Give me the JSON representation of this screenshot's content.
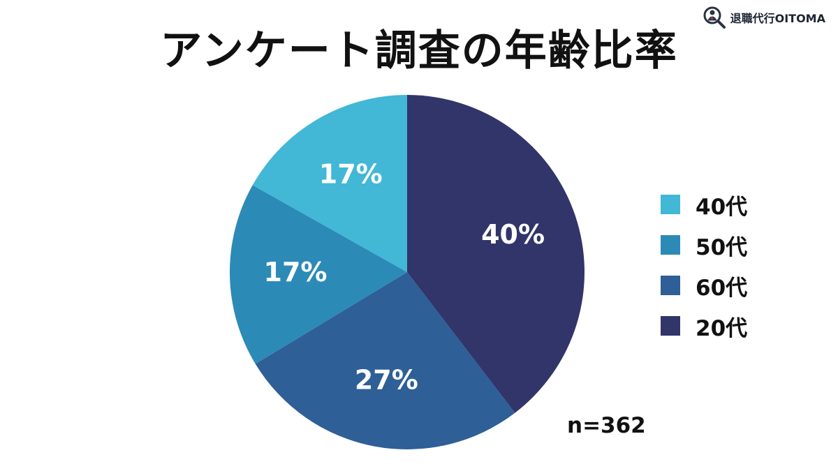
{
  "title": "アンケート調査の年齢比率",
  "brand": {
    "name": "退職代行OITOMA",
    "logo_icon": "consultant-magnifier-icon"
  },
  "sample_size": "n=362",
  "legend": [
    {
      "label": "40代",
      "color": "#42b7d6"
    },
    {
      "label": "50代",
      "color": "#2c8ab7"
    },
    {
      "label": "60代",
      "color": "#2e5f96"
    },
    {
      "label": "20代",
      "color": "#313569"
    }
  ],
  "chart_data": {
    "type": "pie",
    "title": "アンケート調査の年齢比率",
    "categories": [
      "20代",
      "60代",
      "50代",
      "40代"
    ],
    "values": [
      40,
      27,
      17,
      17
    ],
    "labels": [
      "40%",
      "27%",
      "17%",
      "17%"
    ],
    "colors": [
      "#313569",
      "#2e5f96",
      "#2c8ab7",
      "#42b7d6"
    ],
    "start": "top",
    "direction": "clockwise",
    "legend_position": "right",
    "sample_size": "n=362"
  }
}
